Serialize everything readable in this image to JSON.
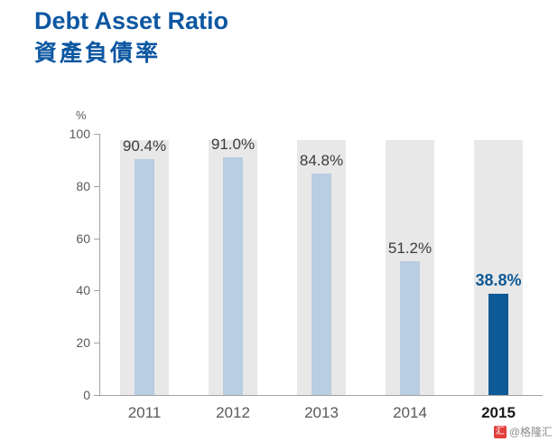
{
  "page": {
    "title": "Debt Asset Ratio",
    "subtitle_zh": "資產負債率",
    "watermark": "@格隆汇",
    "watermark_icon": "gelonghui-logo",
    "watermark_icon_glyph": "汇"
  },
  "chart_data": {
    "type": "bar",
    "title": "Debt Asset Ratio 資產負債率",
    "categories": [
      "2011",
      "2012",
      "2013",
      "2014",
      "2015"
    ],
    "values": [
      90.4,
      91.0,
      84.8,
      51.2,
      38.8
    ],
    "value_labels": [
      "90.4%",
      "91.0%",
      "84.8%",
      "51.2%",
      "38.8%"
    ],
    "xlabel": "",
    "ylabel": "%",
    "ylim": [
      0,
      100
    ],
    "yticks": [
      0,
      20,
      40,
      60,
      80,
      100
    ],
    "grid": false,
    "legend": "none",
    "highlight_index": 4,
    "background_column_height_pct": 97.6,
    "colors": {
      "bar": "#b9cde3",
      "bar_highlight": "#0e5a96",
      "background_column": "#e8e8e8",
      "title": "#0d57a1",
      "axis": "#a3a3a3",
      "tick_label": "#595a5c",
      "value_label": "#3c3c3c"
    }
  }
}
